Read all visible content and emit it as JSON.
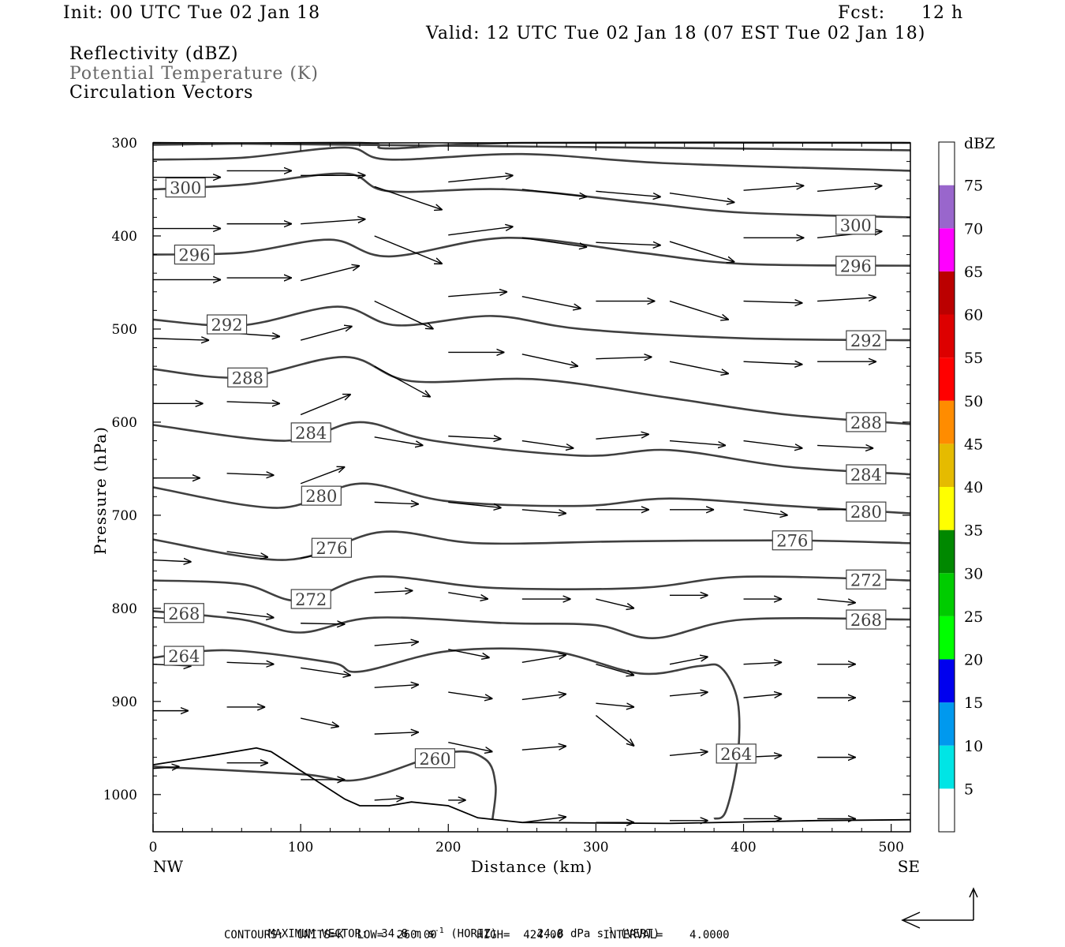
{
  "header": {
    "init": "Init: 00 UTC Tue 02 Jan 18",
    "fcst_label": "Fcst:",
    "fcst_value": "12 h",
    "valid": "Valid: 12 UTC Tue 02 Jan 18 (07 EST Tue 02 Jan 18)",
    "field1": "Reflectivity (dBZ)",
    "field2": "Potential Temperature (K)",
    "field3": "Circulation Vectors"
  },
  "footer": {
    "max_vector_label": "MAXIMUM VECTOR:",
    "max_horiz": "34.8 m s",
    "horiz_tag": "(HORIZ)",
    "max_vert": "24.8 dPa s",
    "vert_tag": "(VERT)",
    "exp": "-1",
    "contours": "CONTOURS:  UNITS=K  LOW=  260.00      HIGH=  424.00      INTERVAL=    4.0000"
  },
  "chart_data": {
    "type": "contour",
    "xlabel": "Distance (km)",
    "ylabel": "Pressure (hPa)",
    "x_left_label": "NW",
    "x_right_label": "SE",
    "xlim": [
      0,
      513
    ],
    "ylim": [
      1040,
      300
    ],
    "x_ticks": [
      0,
      100,
      200,
      300,
      400,
      500
    ],
    "y_ticks": [
      300,
      400,
      500,
      600,
      700,
      800,
      900,
      1000
    ],
    "colorbar": {
      "unit": "dBZ",
      "labels": [
        5,
        10,
        15,
        20,
        25,
        30,
        35,
        40,
        45,
        50,
        55,
        60,
        65,
        70,
        75
      ],
      "bins": [
        {
          "color": "#ffffff"
        },
        {
          "color": "#00e5e5"
        },
        {
          "color": "#0099ee"
        },
        {
          "color": "#0000ee"
        },
        {
          "color": "#00ff00"
        },
        {
          "color": "#00cc00"
        },
        {
          "color": "#008800"
        },
        {
          "color": "#ffff00"
        },
        {
          "color": "#e5bb00"
        },
        {
          "color": "#ff8c00"
        },
        {
          "color": "#ff0000"
        },
        {
          "color": "#dd0000"
        },
        {
          "color": "#bb0000"
        },
        {
          "color": "#ff00ff"
        },
        {
          "color": "#9966cc"
        },
        {
          "color": "#ffffff"
        }
      ]
    },
    "theta_contours": [
      {
        "value": 300,
        "label": "300",
        "label_at": [
          [
            22,
            348
          ],
          [
            476,
            388
          ]
        ],
        "points": [
          [
            0,
            350
          ],
          [
            60,
            345
          ],
          [
            130,
            333
          ],
          [
            160,
            352
          ],
          [
            240,
            350
          ],
          [
            330,
            364
          ],
          [
            400,
            375
          ],
          [
            513,
            380
          ]
        ]
      },
      {
        "value": 296,
        "label": "296",
        "label_at": [
          [
            28,
            420
          ],
          [
            476,
            432
          ]
        ],
        "points": [
          [
            0,
            420
          ],
          [
            60,
            418
          ],
          [
            120,
            404
          ],
          [
            160,
            422
          ],
          [
            240,
            402
          ],
          [
            330,
            418
          ],
          [
            400,
            430
          ],
          [
            513,
            432
          ]
        ]
      },
      {
        "value": 292,
        "label": "292",
        "label_at": [
          [
            50,
            495
          ],
          [
            483,
            512
          ]
        ],
        "points": [
          [
            0,
            490
          ],
          [
            60,
            496
          ],
          [
            125,
            476
          ],
          [
            165,
            496
          ],
          [
            230,
            486
          ],
          [
            290,
            500
          ],
          [
            400,
            510
          ],
          [
            513,
            512
          ]
        ]
      },
      {
        "value": 288,
        "label": "288",
        "label_at": [
          [
            64,
            552
          ],
          [
            483,
            600
          ]
        ],
        "points": [
          [
            0,
            543
          ],
          [
            60,
            552
          ],
          [
            130,
            530
          ],
          [
            175,
            556
          ],
          [
            260,
            554
          ],
          [
            350,
            574
          ],
          [
            430,
            592
          ],
          [
            513,
            602
          ]
        ]
      },
      {
        "value": 284,
        "label": "284",
        "label_at": [
          [
            107,
            611
          ],
          [
            483,
            656
          ]
        ],
        "points": [
          [
            0,
            603
          ],
          [
            90,
            620
          ],
          [
            140,
            600
          ],
          [
            190,
            620
          ],
          [
            290,
            636
          ],
          [
            350,
            630
          ],
          [
            430,
            648
          ],
          [
            513,
            656
          ]
        ]
      },
      {
        "value": 280,
        "label": "280",
        "label_at": [
          [
            114,
            679
          ],
          [
            483,
            696
          ]
        ],
        "points": [
          [
            0,
            670
          ],
          [
            85,
            692
          ],
          [
            140,
            666
          ],
          [
            200,
            685
          ],
          [
            290,
            690
          ],
          [
            350,
            682
          ],
          [
            430,
            690
          ],
          [
            513,
            698
          ]
        ]
      },
      {
        "value": 276,
        "label": "276",
        "label_at": [
          [
            121,
            735
          ],
          [
            433,
            727
          ]
        ],
        "points": [
          [
            0,
            726
          ],
          [
            90,
            748
          ],
          [
            155,
            718
          ],
          [
            220,
            730
          ],
          [
            320,
            728
          ],
          [
            430,
            727
          ],
          [
            513,
            730
          ]
        ]
      },
      {
        "value": 272,
        "label": "272",
        "label_at": [
          [
            107,
            790
          ],
          [
            483,
            769
          ]
        ],
        "points": [
          [
            0,
            770
          ],
          [
            60,
            774
          ],
          [
            100,
            792
          ],
          [
            150,
            766
          ],
          [
            230,
            778
          ],
          [
            330,
            778
          ],
          [
            400,
            766
          ],
          [
            513,
            770
          ]
        ]
      },
      {
        "value": 268,
        "label": "268",
        "label_at": [
          [
            21,
            805
          ],
          [
            483,
            812
          ]
        ],
        "points": [
          [
            0,
            803
          ],
          [
            60,
            812
          ],
          [
            100,
            826
          ],
          [
            150,
            810
          ],
          [
            240,
            816
          ],
          [
            300,
            818
          ],
          [
            340,
            832
          ],
          [
            400,
            812
          ],
          [
            513,
            812
          ]
        ]
      },
      {
        "value": 264,
        "label": "264",
        "label_at": [
          [
            21,
            851
          ],
          [
            395,
            956
          ]
        ],
        "points": [
          [
            0,
            853
          ],
          [
            50,
            845
          ],
          [
            120,
            858
          ],
          [
            140,
            868
          ],
          [
            200,
            846
          ],
          [
            270,
            846
          ],
          [
            330,
            870
          ],
          [
            370,
            862
          ],
          [
            385,
            864
          ],
          [
            396,
            900
          ],
          [
            396,
            960
          ],
          [
            388,
            1018
          ],
          [
            380,
            1026
          ]
        ]
      },
      {
        "value": 260,
        "label": "260",
        "label_at": [
          [
            191,
            961
          ]
        ],
        "points": [
          [
            0,
            970
          ],
          [
            100,
            978
          ],
          [
            140,
            984
          ],
          [
            200,
            955
          ],
          [
            225,
            962
          ],
          [
            232,
            990
          ],
          [
            230,
            1026
          ]
        ]
      }
    ],
    "terrain": [
      [
        0,
        968
      ],
      [
        40,
        958
      ],
      [
        70,
        950
      ],
      [
        80,
        954
      ],
      [
        130,
        1005
      ],
      [
        140,
        1012
      ],
      [
        160,
        1012
      ],
      [
        175,
        1008
      ],
      [
        200,
        1012
      ],
      [
        220,
        1025
      ],
      [
        250,
        1030
      ],
      [
        350,
        1031
      ],
      [
        450,
        1028
      ],
      [
        513,
        1027
      ]
    ],
    "vectors": [
      [
        0,
        337,
        46,
        337
      ],
      [
        50,
        330,
        94,
        330
      ],
      [
        100,
        335,
        144,
        335
      ],
      [
        150,
        347,
        196,
        372
      ],
      [
        200,
        342,
        244,
        335
      ],
      [
        250,
        350,
        294,
        358
      ],
      [
        300,
        352,
        344,
        358
      ],
      [
        350,
        354,
        394,
        364
      ],
      [
        400,
        351,
        441,
        346
      ],
      [
        450,
        352,
        494,
        346
      ],
      [
        0,
        392,
        46,
        392
      ],
      [
        50,
        387,
        94,
        387
      ],
      [
        100,
        387,
        144,
        382
      ],
      [
        150,
        400,
        196,
        430
      ],
      [
        200,
        399,
        244,
        390
      ],
      [
        250,
        402,
        294,
        412
      ],
      [
        300,
        407,
        344,
        410
      ],
      [
        350,
        406,
        394,
        428
      ],
      [
        400,
        402,
        441,
        402
      ],
      [
        450,
        402,
        494,
        395
      ],
      [
        0,
        447,
        46,
        447
      ],
      [
        50,
        445,
        94,
        445
      ],
      [
        100,
        448,
        140,
        432
      ],
      [
        150,
        470,
        190,
        500
      ],
      [
        200,
        465,
        240,
        460
      ],
      [
        250,
        465,
        290,
        478
      ],
      [
        300,
        470,
        340,
        470
      ],
      [
        350,
        470,
        390,
        490
      ],
      [
        400,
        470,
        440,
        472
      ],
      [
        450,
        470,
        490,
        466
      ],
      [
        0,
        510,
        38,
        512
      ],
      [
        50,
        504,
        86,
        508
      ],
      [
        100,
        512,
        135,
        497
      ],
      [
        150,
        540,
        188,
        573
      ],
      [
        200,
        525,
        238,
        525
      ],
      [
        250,
        527,
        288,
        540
      ],
      [
        300,
        532,
        338,
        530
      ],
      [
        350,
        535,
        390,
        548
      ],
      [
        400,
        535,
        440,
        538
      ],
      [
        450,
        535,
        490,
        535
      ],
      [
        0,
        580,
        34,
        580
      ],
      [
        50,
        578,
        86,
        580
      ],
      [
        100,
        592,
        134,
        570
      ],
      [
        150,
        616,
        183,
        625
      ],
      [
        200,
        615,
        236,
        618
      ],
      [
        250,
        620,
        285,
        628
      ],
      [
        300,
        618,
        336,
        613
      ],
      [
        350,
        620,
        388,
        625
      ],
      [
        400,
        620,
        440,
        628
      ],
      [
        450,
        625,
        488,
        628
      ],
      [
        0,
        660,
        32,
        660
      ],
      [
        50,
        655,
        82,
        657
      ],
      [
        100,
        666,
        130,
        648
      ],
      [
        150,
        686,
        180,
        688
      ],
      [
        200,
        686,
        236,
        692
      ],
      [
        250,
        694,
        280,
        698
      ],
      [
        300,
        694,
        336,
        694
      ],
      [
        350,
        694,
        380,
        694
      ],
      [
        400,
        694,
        430,
        700
      ],
      [
        450,
        694,
        480,
        694
      ],
      [
        0,
        748,
        26,
        750
      ],
      [
        50,
        739,
        78,
        745
      ],
      [
        100,
        746,
        130,
        738
      ],
      [
        150,
        783,
        176,
        781
      ],
      [
        200,
        783,
        227,
        790
      ],
      [
        250,
        790,
        283,
        790
      ],
      [
        300,
        790,
        326,
        800
      ],
      [
        350,
        786,
        376,
        786
      ],
      [
        400,
        790,
        426,
        790
      ],
      [
        450,
        790,
        476,
        794
      ],
      [
        0,
        810,
        30,
        812
      ],
      [
        50,
        804,
        82,
        810
      ],
      [
        100,
        816,
        130,
        817
      ],
      [
        150,
        840,
        180,
        836
      ],
      [
        200,
        844,
        228,
        853
      ],
      [
        250,
        858,
        280,
        850
      ],
      [
        300,
        860,
        326,
        872
      ],
      [
        350,
        860,
        376,
        852
      ],
      [
        400,
        860,
        426,
        858
      ],
      [
        450,
        860,
        476,
        860
      ],
      [
        0,
        860,
        26,
        862
      ],
      [
        50,
        858,
        82,
        860
      ],
      [
        100,
        864,
        134,
        872
      ],
      [
        150,
        885,
        180,
        882
      ],
      [
        200,
        890,
        230,
        897
      ],
      [
        250,
        898,
        280,
        892
      ],
      [
        300,
        902,
        326,
        906
      ],
      [
        350,
        894,
        376,
        890
      ],
      [
        400,
        896,
        426,
        892
      ],
      [
        450,
        896,
        476,
        896
      ],
      [
        0,
        910,
        24,
        910
      ],
      [
        50,
        906,
        76,
        906
      ],
      [
        100,
        918,
        126,
        927
      ],
      [
        150,
        935,
        180,
        933
      ],
      [
        200,
        944,
        230,
        954
      ],
      [
        250,
        952,
        280,
        948
      ],
      [
        300,
        915,
        326,
        948
      ],
      [
        350,
        958,
        376,
        954
      ],
      [
        400,
        960,
        426,
        958
      ],
      [
        450,
        960,
        476,
        960
      ],
      [
        0,
        972,
        18,
        970
      ],
      [
        50,
        966,
        78,
        966
      ],
      [
        100,
        984,
        130,
        984
      ],
      [
        150,
        1006,
        170,
        1004
      ],
      [
        200,
        1006,
        212,
        1006
      ],
      [
        250,
        1030,
        280,
        1024
      ],
      [
        300,
        1030,
        326,
        1030
      ],
      [
        350,
        1028,
        376,
        1028
      ],
      [
        400,
        1026,
        426,
        1026
      ],
      [
        450,
        1026,
        476,
        1026
      ]
    ]
  }
}
